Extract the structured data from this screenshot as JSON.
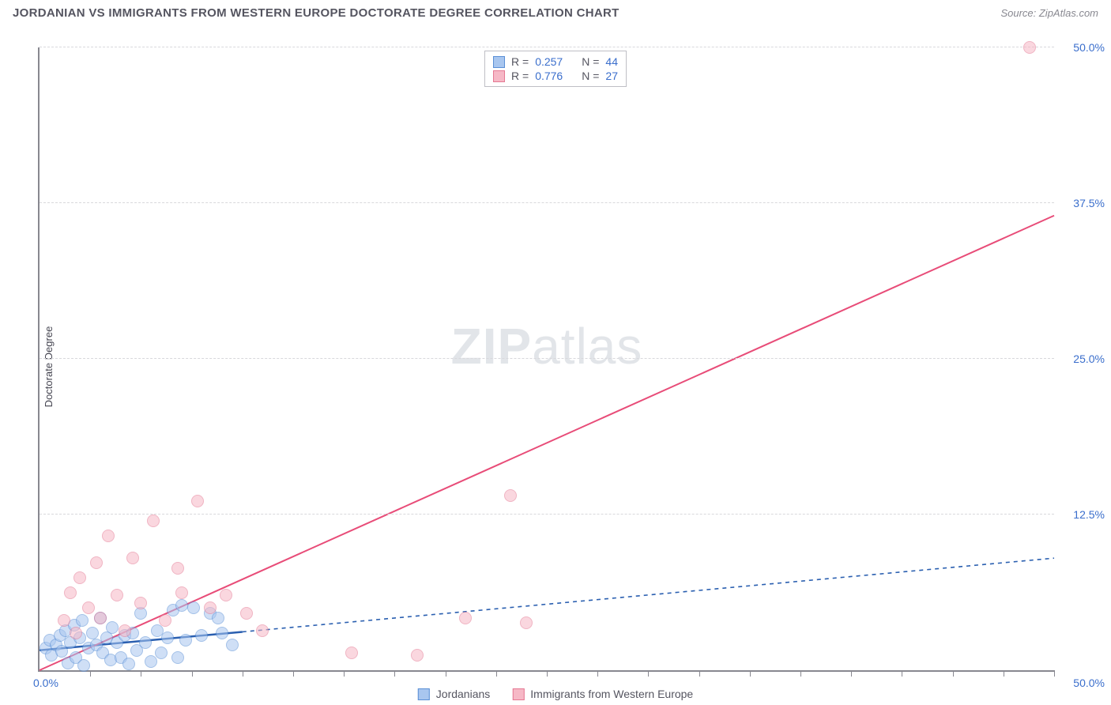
{
  "title": "JORDANIAN VS IMMIGRANTS FROM WESTERN EUROPE DOCTORATE DEGREE CORRELATION CHART",
  "source": "Source: ZipAtlas.com",
  "ylabel": "Doctorate Degree",
  "watermark_a": "ZIP",
  "watermark_b": "atlas",
  "chart": {
    "type": "scatter",
    "xlim": [
      0,
      50
    ],
    "ylim": [
      0,
      50
    ],
    "ytick_step": 12.5,
    "ytick_labels": [
      "12.5%",
      "25.0%",
      "37.5%",
      "50.0%"
    ],
    "origin_label": "0.0%",
    "xmax_label": "50.0%",
    "xtick_count": 20,
    "grid_color": "#d8d8dc",
    "axis_color": "#888890",
    "tick_label_color": "#3a6ecc",
    "background_color": "#ffffff",
    "point_radius": 8,
    "point_opacity": 0.55,
    "series": [
      {
        "name": "Jordanians",
        "fill": "#a8c6ef",
        "stroke": "#5a8fd6",
        "line_color": "#2a5fb0",
        "line_dash": "5,5",
        "line_solid_until_x": 10,
        "R": "0.257",
        "N": "44",
        "trend": {
          "x1": 0,
          "y1": 1.6,
          "x2": 50,
          "y2": 9.0
        },
        "points": [
          [
            0.3,
            1.8
          ],
          [
            0.5,
            2.4
          ],
          [
            0.6,
            1.2
          ],
          [
            0.8,
            2.0
          ],
          [
            1.0,
            2.8
          ],
          [
            1.1,
            1.5
          ],
          [
            1.3,
            3.2
          ],
          [
            1.4,
            0.6
          ],
          [
            1.5,
            2.2
          ],
          [
            1.7,
            3.6
          ],
          [
            1.8,
            1.0
          ],
          [
            2.0,
            2.6
          ],
          [
            2.1,
            4.0
          ],
          [
            2.2,
            0.4
          ],
          [
            2.4,
            1.8
          ],
          [
            2.6,
            3.0
          ],
          [
            2.8,
            2.0
          ],
          [
            3.0,
            4.2
          ],
          [
            3.1,
            1.4
          ],
          [
            3.3,
            2.6
          ],
          [
            3.5,
            0.8
          ],
          [
            3.6,
            3.4
          ],
          [
            3.8,
            2.2
          ],
          [
            4.0,
            1.0
          ],
          [
            4.2,
            2.8
          ],
          [
            4.4,
            0.5
          ],
          [
            4.6,
            3.0
          ],
          [
            4.8,
            1.6
          ],
          [
            5.0,
            4.6
          ],
          [
            5.2,
            2.2
          ],
          [
            5.5,
            0.7
          ],
          [
            5.8,
            3.2
          ],
          [
            6.0,
            1.4
          ],
          [
            6.3,
            2.6
          ],
          [
            6.6,
            4.8
          ],
          [
            6.8,
            1.0
          ],
          [
            7.2,
            2.4
          ],
          [
            7.6,
            5.0
          ],
          [
            8.0,
            2.8
          ],
          [
            8.4,
            4.6
          ],
          [
            9.0,
            3.0
          ],
          [
            9.5,
            2.0
          ],
          [
            7.0,
            5.2
          ],
          [
            8.8,
            4.2
          ]
        ]
      },
      {
        "name": "Immigrants from Western Europe",
        "fill": "#f6b8c6",
        "stroke": "#e57893",
        "line_color": "#e84c78",
        "line_dash": "",
        "line_solid_until_x": 50,
        "R": "0.776",
        "N": "27",
        "trend": {
          "x1": 0,
          "y1": 0.0,
          "x2": 50,
          "y2": 36.5
        },
        "points": [
          [
            1.2,
            4.0
          ],
          [
            1.5,
            6.2
          ],
          [
            1.8,
            3.0
          ],
          [
            2.0,
            7.4
          ],
          [
            2.4,
            5.0
          ],
          [
            2.8,
            8.6
          ],
          [
            3.0,
            4.2
          ],
          [
            3.4,
            10.8
          ],
          [
            3.8,
            6.0
          ],
          [
            4.2,
            3.2
          ],
          [
            4.6,
            9.0
          ],
          [
            5.0,
            5.4
          ],
          [
            5.6,
            12.0
          ],
          [
            6.2,
            4.0
          ],
          [
            7.0,
            6.2
          ],
          [
            7.8,
            13.6
          ],
          [
            8.4,
            5.0
          ],
          [
            9.2,
            6.0
          ],
          [
            10.2,
            4.6
          ],
          [
            11.0,
            3.2
          ],
          [
            15.4,
            1.4
          ],
          [
            18.6,
            1.2
          ],
          [
            21.0,
            4.2
          ],
          [
            23.2,
            14.0
          ],
          [
            24.0,
            3.8
          ],
          [
            48.8,
            50.0
          ],
          [
            6.8,
            8.2
          ]
        ]
      }
    ]
  },
  "legend": {
    "series1_label": "Jordanians",
    "series2_label": "Immigrants from Western Europe"
  },
  "corr_box": {
    "r_label": "R =",
    "n_label": "N ="
  }
}
